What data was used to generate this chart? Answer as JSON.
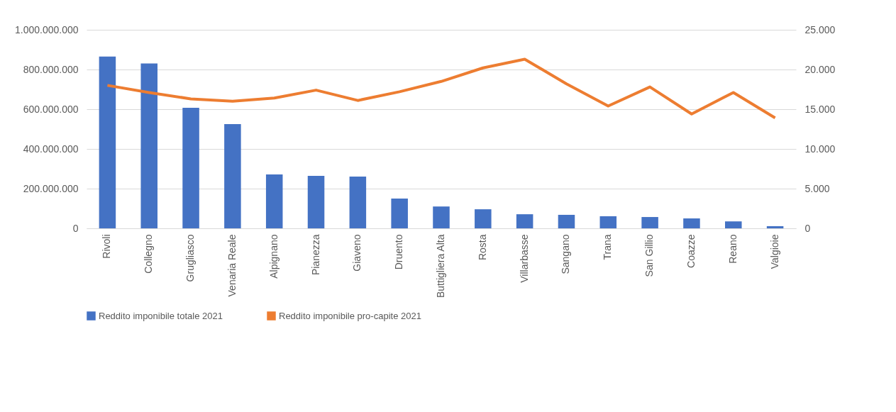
{
  "chart_data": {
    "type": "bar",
    "categories": [
      "Rivoli",
      "Collegno",
      "Grugliasco",
      "Venaria Reale",
      "Alpignano",
      "Pianezza",
      "Giaveno",
      "Druento",
      "Buttigliera Alta",
      "Rosta",
      "Villarbasse",
      "Sangano",
      "Trana",
      "San Gillio",
      "Coazze",
      "Reano",
      "Valgioie"
    ],
    "series": [
      {
        "name": "Reddito imponibile totale 2021",
        "color": "#4472c4",
        "values": [
          865000000,
          830000000,
          607000000,
          525000000,
          271000000,
          264000000,
          261000000,
          150000000,
          110000000,
          96000000,
          71000000,
          68000000,
          61000000,
          57000000,
          50000000,
          35000000,
          11000000
        ]
      },
      {
        "name": "Reddito imponibile pro-capite 2021",
        "type": "line",
        "axis": "y2",
        "color": "#ed7d31",
        "values": [
          18000,
          17100,
          16300,
          16000,
          16400,
          17400,
          16100,
          17200,
          18500,
          20200,
          21300,
          18200,
          15400,
          17800,
          14400,
          17100,
          13900
        ]
      }
    ],
    "ylim": [
      0,
      1000000000
    ],
    "yticks": [
      {
        "value": 0,
        "label": "0"
      },
      {
        "value": 200000000,
        "label": "200.000.000"
      },
      {
        "value": 400000000,
        "label": "400.000.000"
      },
      {
        "value": 600000000,
        "label": "600.000.000"
      },
      {
        "value": 800000000,
        "label": "800.000.000"
      },
      {
        "value": 1000000000,
        "label": "1.000.000.000"
      }
    ],
    "y2lim": [
      0,
      25000
    ],
    "y2ticks": [
      {
        "value": 0,
        "label": "0"
      },
      {
        "value": 5000,
        "label": "5.000"
      },
      {
        "value": 10000,
        "label": "10.000"
      },
      {
        "value": 15000,
        "label": "15.000"
      },
      {
        "value": 20000,
        "label": "20.000"
      },
      {
        "value": 25000,
        "label": "25.000"
      }
    ],
    "grid": "y",
    "legend": "bottom",
    "marker": "none",
    "line_style": "solid"
  }
}
